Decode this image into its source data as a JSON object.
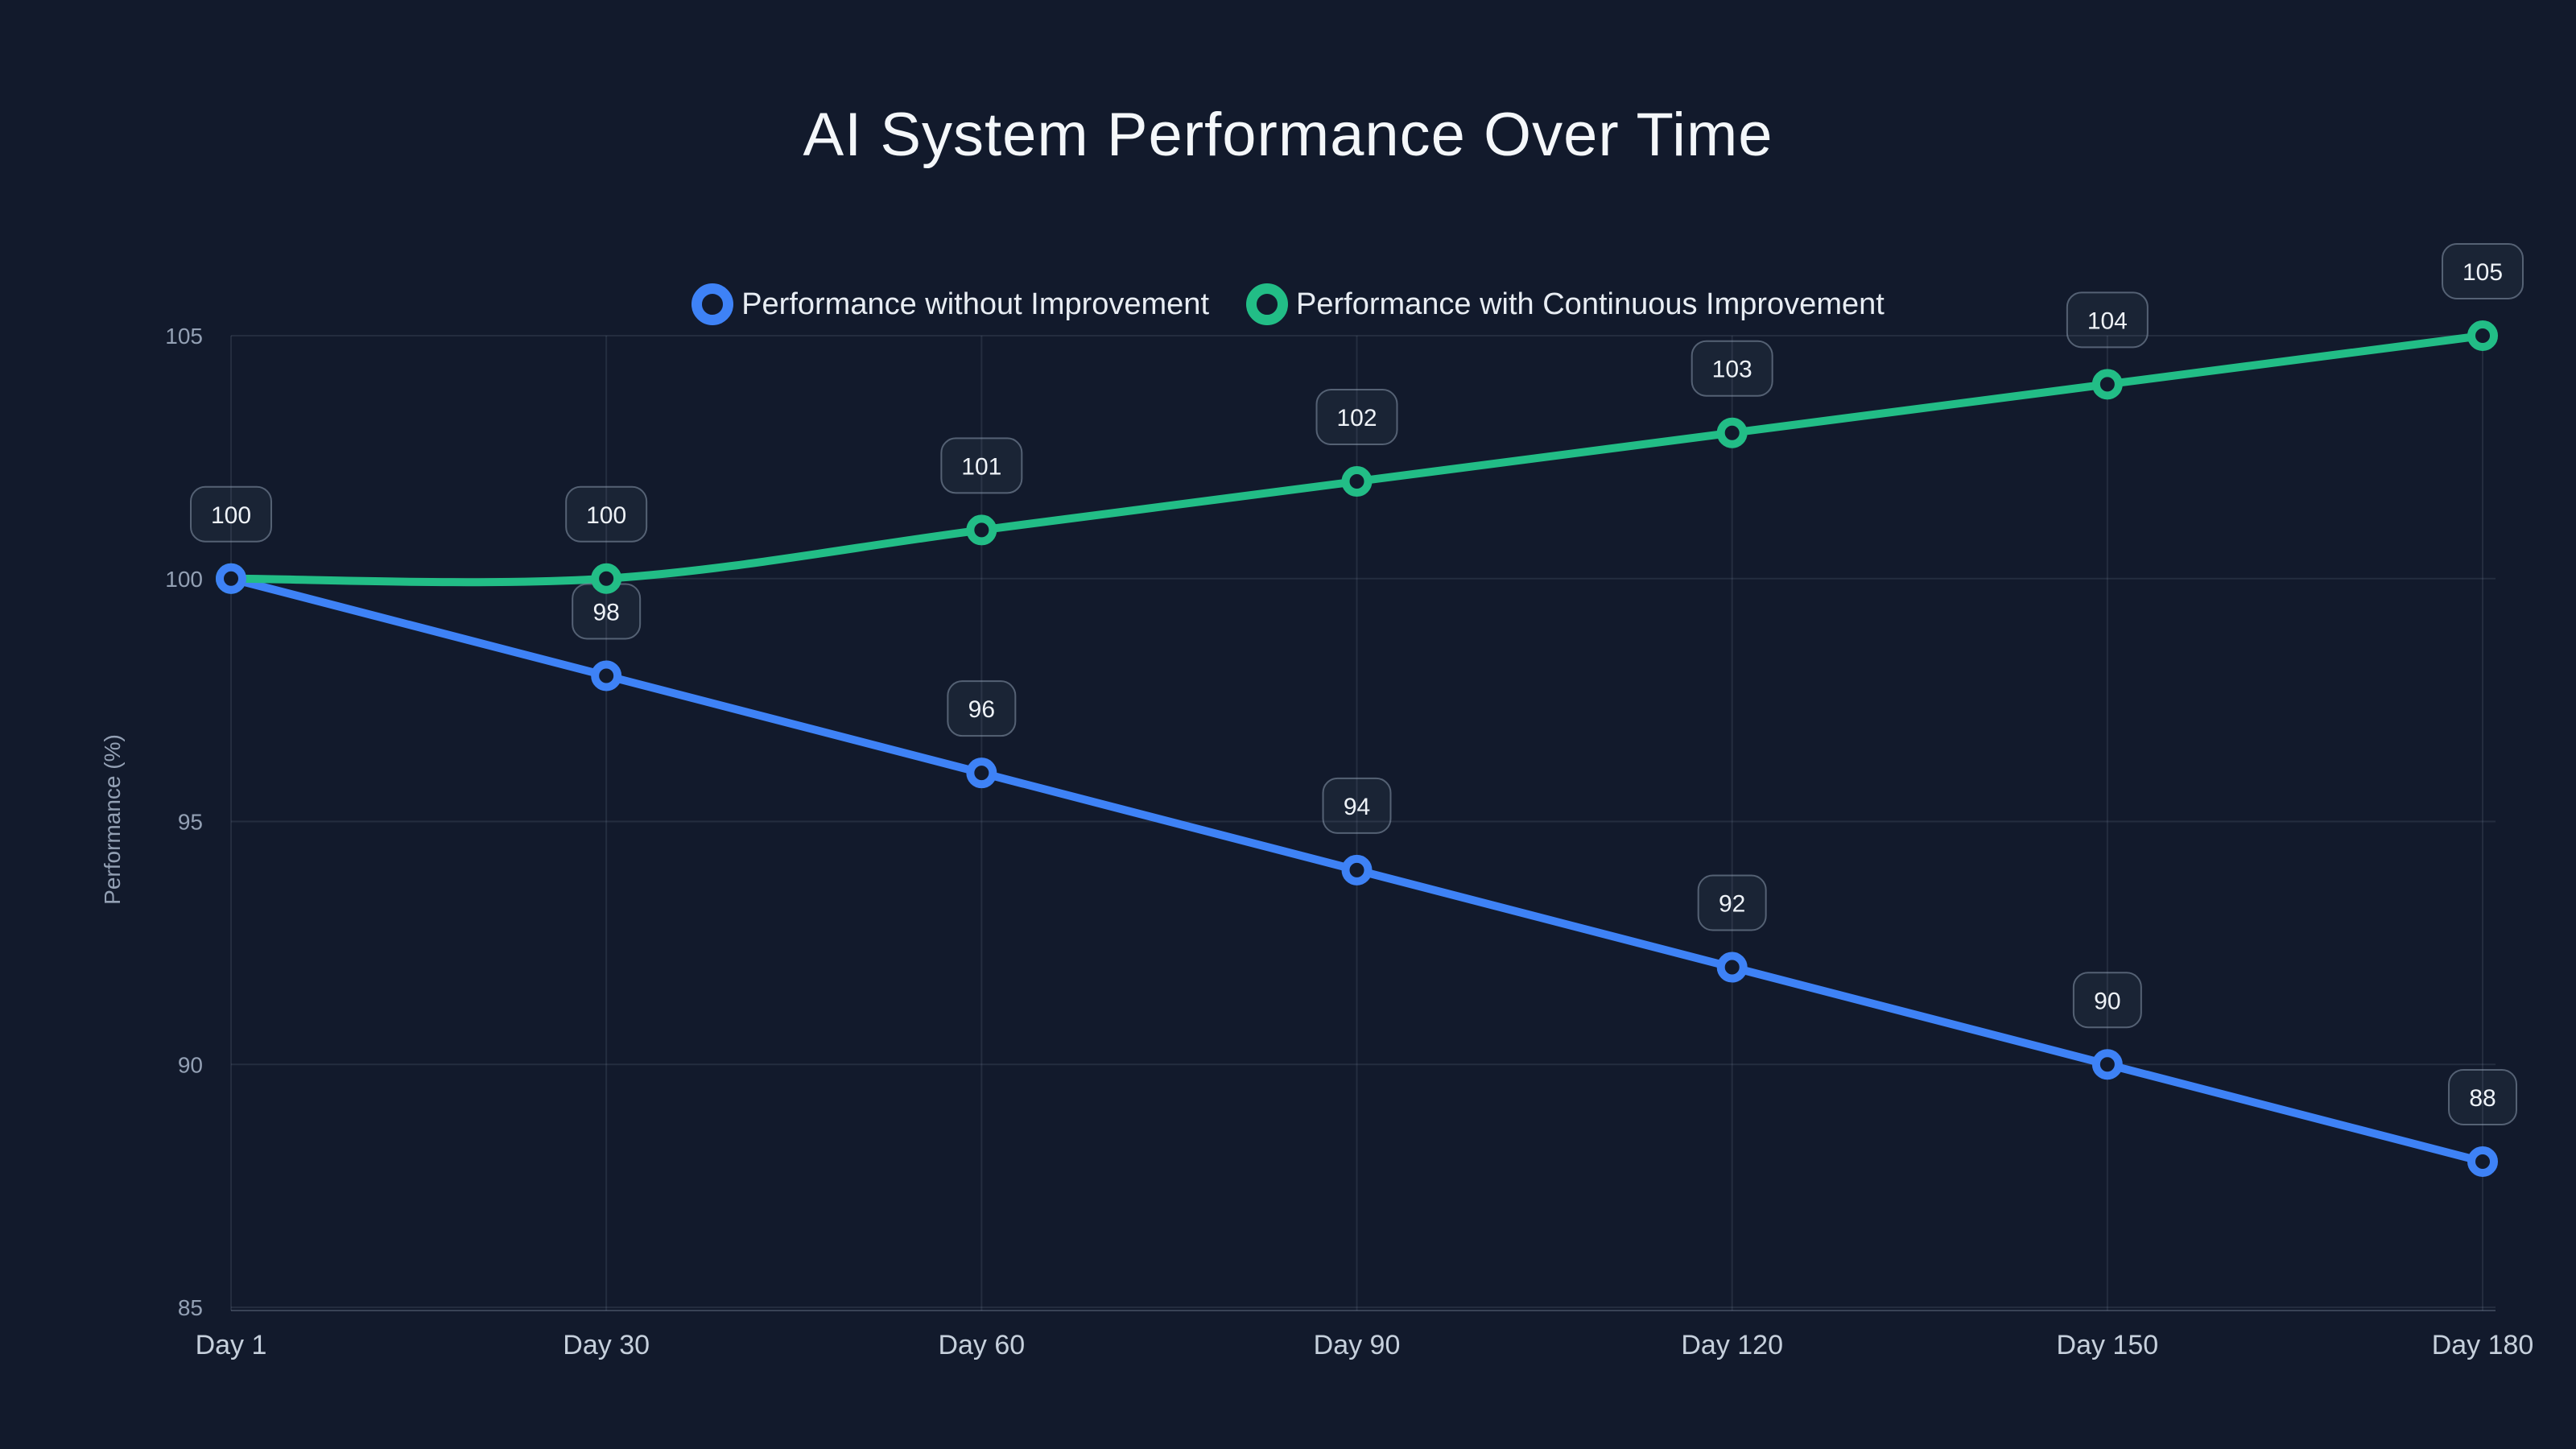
{
  "chart_data": {
    "type": "line",
    "title": "AI System Performance Over Time",
    "xlabel": "",
    "ylabel": "Performance (%)",
    "categories": [
      "Day 1",
      "Day 30",
      "Day 60",
      "Day 90",
      "Day 120",
      "Day 150",
      "Day 180"
    ],
    "y_ticks": [
      85,
      90,
      95,
      100,
      105
    ],
    "ylim": [
      85,
      105
    ],
    "grid": true,
    "legend_position": "top",
    "data_labels_visible": true,
    "line_style": "smooth",
    "marker_shape": "hollow-circle",
    "series": [
      {
        "id": "without-improvement",
        "name": "Performance without Improvement",
        "color": "#3e82f6",
        "values": [
          100,
          98,
          96,
          94,
          92,
          90,
          88
        ]
      },
      {
        "id": "continuous-improvement",
        "name": "Performance with Continuous Improvement",
        "color": "#22bd86",
        "values": [
          100,
          100,
          101,
          102,
          103,
          104,
          105
        ]
      }
    ],
    "theme": {
      "background": "#121a2c",
      "grid_color": "rgba(148,163,184,0.14)",
      "axis_line_color": "rgba(148,163,184,0.30)",
      "y_tick_color": "#93a0b4",
      "x_tick_color": "#c6d0dc",
      "title_color": "#f4f7fa",
      "legend_text_color": "#e8edf3",
      "label_box_fill": "rgba(148,163,184,0.07)",
      "label_box_border": "rgba(148,163,184,0.50)",
      "label_text_color": "#eef2f7"
    }
  }
}
